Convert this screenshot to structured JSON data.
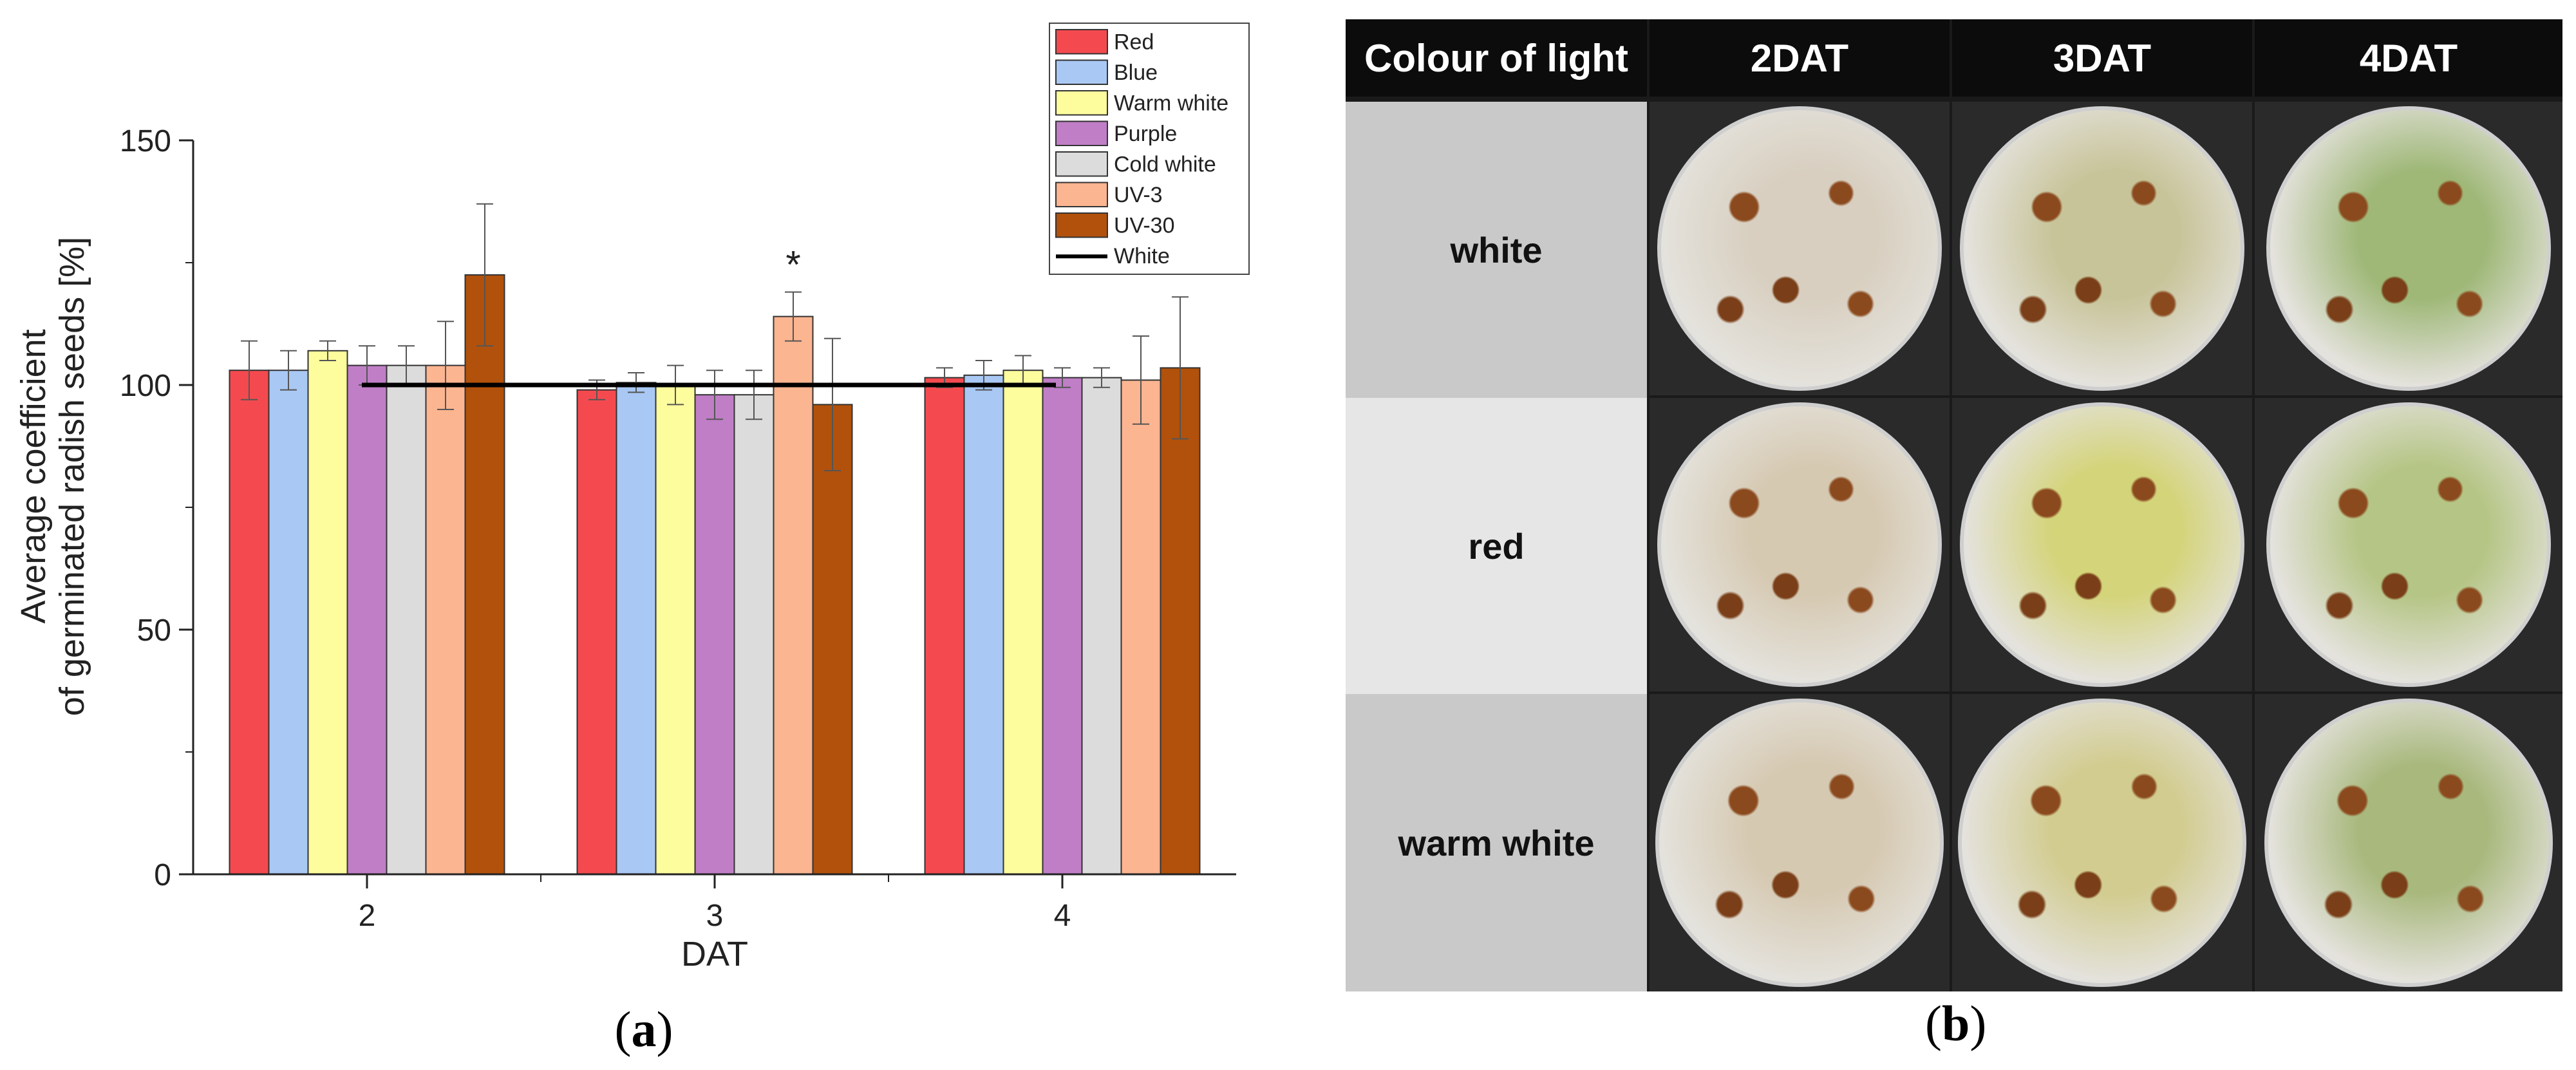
{
  "panel_a": {
    "label_open": "(",
    "label_letter": "a",
    "label_close": ")"
  },
  "panel_b": {
    "label_open": "(",
    "label_letter": "b",
    "label_close": ")",
    "header": [
      "Colour of light",
      "2DAT",
      "3DAT",
      "4DAT"
    ],
    "rows": [
      "white",
      "red",
      "warm white"
    ],
    "dish_colors": {
      "white": [
        "#d8cfc0",
        "#c8c49a",
        "#9fb878"
      ],
      "red": [
        "#d6c9b2",
        "#d4d47a",
        "#b5c585"
      ],
      "warm white": [
        "#d6c9b2",
        "#d2cc90",
        "#a9b97e"
      ]
    }
  },
  "chart_data": {
    "type": "bar",
    "xlabel": "DAT",
    "ylabel_line1": "Average coefficient",
    "ylabel_line2": "of germinated radish seeds [%]",
    "categories": [
      "2",
      "3",
      "4"
    ],
    "ylim": [
      0,
      150
    ],
    "yticks": [
      "0",
      "50",
      "100",
      "150"
    ],
    "series": [
      {
        "name": "Red",
        "color": "#f44a4f",
        "values": [
          103,
          99,
          101.5
        ],
        "errors": [
          6,
          2,
          2
        ]
      },
      {
        "name": "Blue",
        "color": "#a9c8f4",
        "values": [
          103,
          100.5,
          102
        ],
        "errors": [
          4,
          2,
          3
        ]
      },
      {
        "name": "Warm white",
        "color": "#fdfd9e",
        "values": [
          107,
          100,
          103
        ],
        "errors": [
          2,
          4,
          3
        ]
      },
      {
        "name": "Purple",
        "color": "#c07ec7",
        "values": [
          104,
          98,
          101.5
        ],
        "errors": [
          4,
          5,
          2
        ]
      },
      {
        "name": "Cold white",
        "color": "#dcdcdc",
        "values": [
          104,
          98,
          101.5
        ],
        "errors": [
          4,
          5,
          2
        ]
      },
      {
        "name": "UV-3",
        "color": "#fcb591",
        "values": [
          104,
          114,
          101
        ],
        "errors": [
          9,
          5,
          9
        ]
      },
      {
        "name": "UV-30",
        "color": "#b2510b",
        "values": [
          122.5,
          96,
          103.5
        ],
        "errors": [
          14.5,
          13.5,
          14.5
        ]
      }
    ],
    "reference_line": {
      "name": "White",
      "value": 100
    },
    "annotations": [
      {
        "text": "*",
        "category": "3",
        "series": "UV-3"
      }
    ],
    "legend_position": "top-right",
    "grid": false
  }
}
